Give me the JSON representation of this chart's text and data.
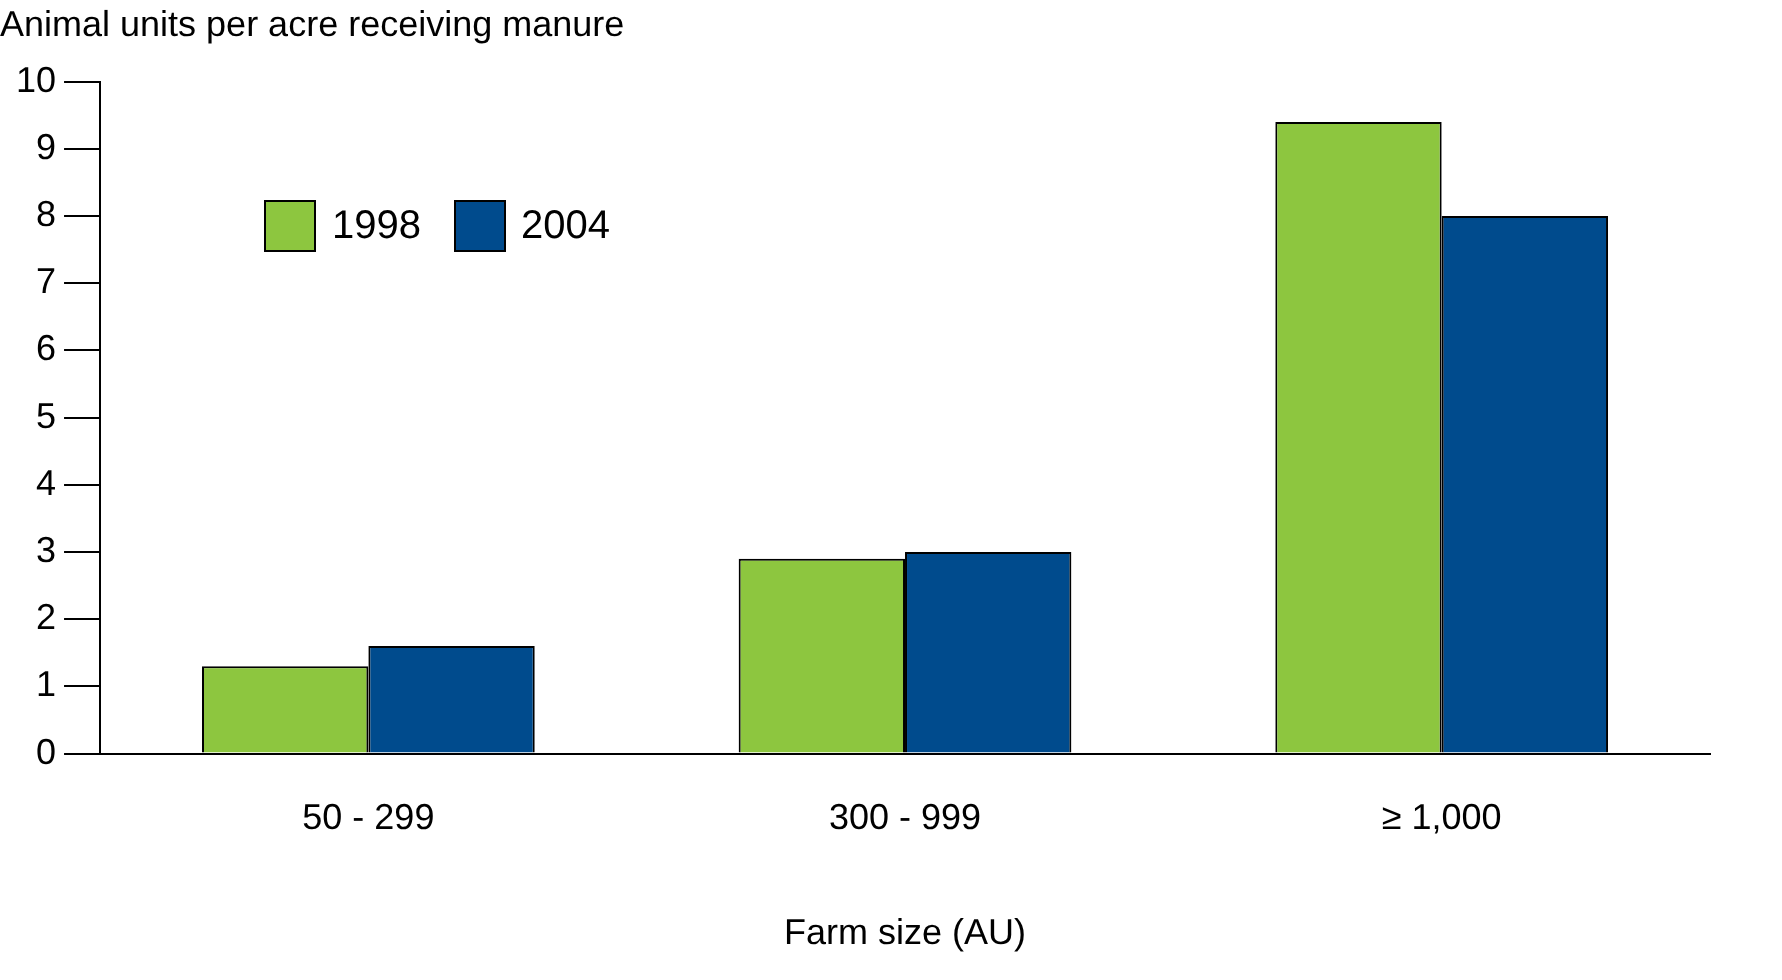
{
  "chart_data": {
    "type": "bar",
    "ylabel": "Animal units per acre receiving manure",
    "xlabel": "Farm size (AU)",
    "categories": [
      "50 - 299",
      "300 - 999",
      "≥ 1,000"
    ],
    "series": [
      {
        "name": "1998",
        "color": "#8dc63f",
        "values": [
          1.3,
          2.9,
          9.4
        ]
      },
      {
        "name": "2004",
        "color": "#004b8d",
        "values": [
          1.6,
          3.0,
          8.0
        ]
      }
    ],
    "ylim": [
      0,
      10
    ],
    "yticks": [
      0,
      1,
      2,
      3,
      4,
      5,
      6,
      7,
      8,
      9,
      10
    ],
    "grid": false,
    "legend": "top left"
  }
}
